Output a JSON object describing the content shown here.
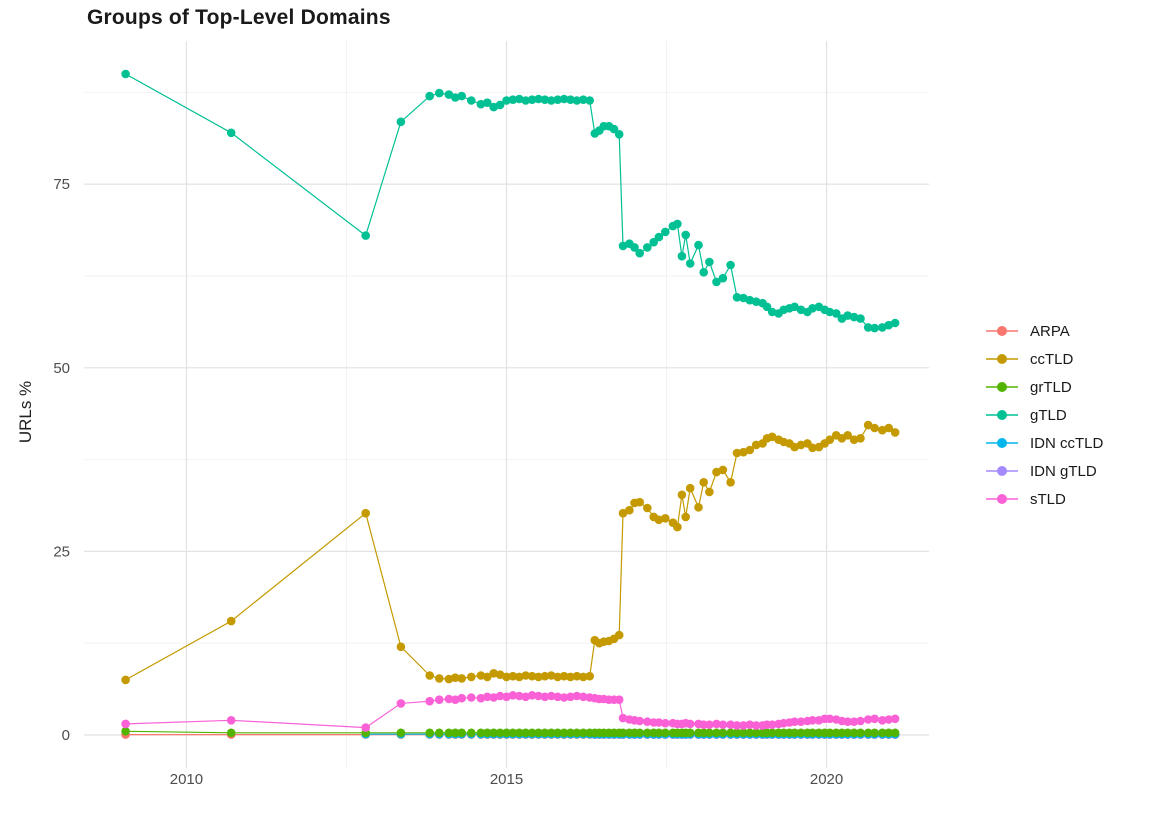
{
  "chart_data": {
    "type": "line",
    "title": "Groups of Top-Level Domains",
    "xlabel": "",
    "ylabel": "URLs %",
    "grid": true,
    "legend_position": "right",
    "xlim": [
      2008.4,
      2021.6
    ],
    "ylim": [
      -4.5,
      94.5
    ],
    "x_ticks": [
      2010,
      2015,
      2020
    ],
    "x_minor_ticks": [
      2012.5,
      2017.5
    ],
    "y_ticks": [
      0,
      25,
      50,
      75
    ],
    "y_minor_ticks": [
      12.5,
      37.5,
      62.5,
      87.5
    ],
    "colors": {
      "background": "#FFFFFF",
      "grid_major": "#E4E4E4",
      "grid_minor": "#F2F2F2",
      "tick_label": "#4D4D4D",
      "title": "#1A1A1A"
    },
    "draw_order": [
      "ARPA",
      "IDN gTLD",
      "IDN ccTLD",
      "grTLD",
      "sTLD",
      "ccTLD",
      "gTLD"
    ],
    "x": [
      2009.05,
      2010.7,
      2012.8,
      2013.35,
      2013.8,
      2013.95,
      2014.1,
      2014.2,
      2014.3,
      2014.45,
      2014.6,
      2014.7,
      2014.8,
      2014.9,
      2015.0,
      2015.1,
      2015.2,
      2015.3,
      2015.4,
      2015.5,
      2015.6,
      2015.7,
      2015.8,
      2015.9,
      2016.0,
      2016.1,
      2016.2,
      2016.3,
      2016.38,
      2016.45,
      2016.52,
      2016.6,
      2016.68,
      2016.76,
      2016.82,
      2016.92,
      2017.0,
      2017.08,
      2017.2,
      2017.3,
      2017.38,
      2017.48,
      2017.6,
      2017.67,
      2017.74,
      2017.8,
      2017.87,
      2018.0,
      2018.08,
      2018.17,
      2018.28,
      2018.38,
      2018.5,
      2018.6,
      2018.7,
      2018.8,
      2018.9,
      2019.0,
      2019.07,
      2019.15,
      2019.25,
      2019.33,
      2019.42,
      2019.5,
      2019.6,
      2019.7,
      2019.78,
      2019.88,
      2019.97,
      2020.05,
      2020.15,
      2020.24,
      2020.33,
      2020.43,
      2020.53,
      2020.65,
      2020.75,
      2020.87,
      2020.97,
      2021.07
    ],
    "series": [
      {
        "name": "ARPA",
        "key": "arpa",
        "color": "#F8766D",
        "values": [
          0.05,
          0.05,
          0.05,
          0.05,
          0.05,
          0.05,
          0.05,
          0.05,
          0.05,
          0.05,
          0.05,
          0.05,
          0.05,
          0.05,
          0.05,
          0.05,
          0.05,
          0.05,
          0.05,
          0.05,
          0.05,
          0.05,
          0.05,
          0.05,
          0.05,
          0.05,
          0.05,
          0.05,
          0.05,
          0.05,
          0.05,
          0.05,
          0.05,
          0.05,
          0.05,
          0.05,
          0.05,
          0.05,
          0.05,
          0.05,
          0.05,
          0.05,
          0.05,
          0.05,
          0.05,
          0.05,
          0.05,
          0.05,
          0.05,
          0.05,
          0.05,
          0.05,
          0.05,
          0.05,
          0.05,
          0.05,
          0.05,
          0.05,
          0.05,
          0.05,
          0.05,
          0.05,
          0.05,
          0.05,
          0.05,
          0.05,
          0.05,
          0.05,
          0.05,
          0.05,
          0.05,
          0.05,
          0.05,
          0.05,
          0.05,
          0.05,
          0.05,
          0.05,
          0.05,
          0.05
        ]
      },
      {
        "name": "ccTLD",
        "key": "cctld",
        "color": "#C49A00",
        "values": [
          7.5,
          15.5,
          30.2,
          12,
          8.1,
          7.7,
          7.6,
          7.8,
          7.7,
          7.9,
          8.1,
          7.9,
          8.4,
          8.2,
          7.9,
          8,
          7.9,
          8.1,
          8,
          7.9,
          8,
          8.1,
          7.9,
          8,
          7.9,
          8,
          7.9,
          8,
          12.9,
          12.5,
          12.7,
          12.8,
          13.1,
          13.6,
          30.2,
          30.6,
          31.6,
          31.7,
          30.9,
          29.7,
          29.3,
          29.5,
          28.9,
          28.3,
          32.7,
          29.7,
          33.6,
          31,
          34.4,
          33.1,
          35.8,
          36.1,
          34.4,
          38.4,
          38.5,
          38.8,
          39.5,
          39.7,
          40.4,
          40.6,
          40.2,
          39.9,
          39.7,
          39.2,
          39.5,
          39.7,
          39.1,
          39.2,
          39.7,
          40.2,
          40.8,
          40.4,
          40.8,
          40.2,
          40.4,
          42.2,
          41.8,
          41.5,
          41.8,
          41.2
        ]
      },
      {
        "name": "grTLD",
        "key": "grtld",
        "color": "#53B400",
        "values": [
          0.5,
          0.3,
          0.3,
          0.3,
          0.3,
          0.3,
          0.3,
          0.3,
          0.3,
          0.3,
          0.3,
          0.3,
          0.3,
          0.3,
          0.3,
          0.3,
          0.3,
          0.3,
          0.3,
          0.3,
          0.3,
          0.3,
          0.3,
          0.3,
          0.3,
          0.3,
          0.3,
          0.3,
          0.3,
          0.3,
          0.3,
          0.3,
          0.3,
          0.3,
          0.3,
          0.3,
          0.3,
          0.3,
          0.3,
          0.3,
          0.3,
          0.3,
          0.3,
          0.3,
          0.3,
          0.3,
          0.3,
          0.3,
          0.3,
          0.3,
          0.3,
          0.3,
          0.3,
          0.3,
          0.3,
          0.3,
          0.3,
          0.3,
          0.3,
          0.3,
          0.3,
          0.3,
          0.3,
          0.3,
          0.3,
          0.3,
          0.3,
          0.3,
          0.3,
          0.3,
          0.3,
          0.3,
          0.3,
          0.3,
          0.3,
          0.3,
          0.3,
          0.3,
          0.3,
          0.3
        ]
      },
      {
        "name": "gTLD",
        "key": "gtld",
        "color": "#00C094",
        "values": [
          90,
          82,
          68,
          83.5,
          87,
          87.4,
          87.2,
          86.8,
          87,
          86.4,
          85.9,
          86.1,
          85.5,
          85.8,
          86.4,
          86.5,
          86.6,
          86.4,
          86.5,
          86.6,
          86.5,
          86.4,
          86.5,
          86.6,
          86.5,
          86.4,
          86.5,
          86.4,
          81.9,
          82.3,
          82.9,
          82.9,
          82.5,
          81.8,
          66.6,
          66.9,
          66.4,
          65.6,
          66.4,
          67.1,
          67.8,
          68.5,
          69.3,
          69.6,
          65.2,
          68.1,
          64.2,
          66.7,
          63,
          64.4,
          61.7,
          62.2,
          64,
          59.6,
          59.5,
          59.2,
          59,
          58.8,
          58.3,
          57.6,
          57.4,
          57.9,
          58.1,
          58.3,
          57.9,
          57.6,
          58.1,
          58.3,
          57.9,
          57.6,
          57.4,
          56.7,
          57.1,
          56.9,
          56.7,
          55.5,
          55.4,
          55.5,
          55.8,
          56.1
        ]
      },
      {
        "name": "IDN ccTLD",
        "key": "idn-cctld",
        "color": "#00B6EB",
        "values": [
          null,
          null,
          0.1,
          0.1,
          0.1,
          0.1,
          0.1,
          0.1,
          0.1,
          0.1,
          0.1,
          0.1,
          0.1,
          0.1,
          0.1,
          0.1,
          0.1,
          0.1,
          0.1,
          0.1,
          0.1,
          0.1,
          0.1,
          0.1,
          0.1,
          0.1,
          0.1,
          0.1,
          0.1,
          0.1,
          0.1,
          0.1,
          0.1,
          0.1,
          0.1,
          0.1,
          0.1,
          0.1,
          0.1,
          0.1,
          0.1,
          0.1,
          0.1,
          0.1,
          0.1,
          0.1,
          0.1,
          0.1,
          0.1,
          0.1,
          0.1,
          0.1,
          0.1,
          0.1,
          0.1,
          0.1,
          0.1,
          0.1,
          0.1,
          0.1,
          0.1,
          0.1,
          0.1,
          0.1,
          0.1,
          0.1,
          0.1,
          0.1,
          0.1,
          0.1,
          0.1,
          0.1,
          0.1,
          0.1,
          0.1,
          0.1,
          0.1,
          0.1,
          0.1,
          0.1
        ]
      },
      {
        "name": "IDN gTLD",
        "key": "idn-gtld",
        "color": "#A58AFF",
        "values": [
          null,
          null,
          null,
          null,
          null,
          null,
          null,
          null,
          null,
          null,
          null,
          null,
          null,
          null,
          null,
          null,
          null,
          null,
          null,
          null,
          null,
          null,
          null,
          null,
          null,
          null,
          null,
          null,
          0.05,
          0.05,
          0.05,
          0.05,
          0.05,
          0.05,
          0.05,
          0.05,
          0.05,
          0.05,
          0.05,
          0.05,
          0.05,
          0.05,
          0.05,
          0.05,
          0.05,
          0.05,
          0.05,
          0.05,
          0.05,
          0.05,
          0.05,
          0.05,
          0.05,
          0.05,
          0.05,
          0.05,
          0.05,
          0.05,
          0.05,
          0.05,
          0.05,
          0.05,
          0.05,
          0.05,
          0.05,
          0.05,
          0.05,
          0.05,
          0.05,
          0.05,
          0.05,
          0.05,
          0.05,
          0.05,
          0.05,
          0.05,
          0.05,
          0.05,
          0.05,
          0.05
        ]
      },
      {
        "name": "sTLD",
        "key": "stld",
        "color": "#FB61D7",
        "values": [
          1.5,
          2,
          1,
          4.3,
          4.6,
          4.8,
          4.9,
          4.8,
          5,
          5.1,
          5,
          5.2,
          5.1,
          5.3,
          5.2,
          5.4,
          5.3,
          5.2,
          5.4,
          5.3,
          5.2,
          5.3,
          5.2,
          5.1,
          5.2,
          5.3,
          5.2,
          5.1,
          5,
          4.9,
          4.9,
          4.8,
          4.8,
          4.8,
          2.3,
          2.1,
          2,
          1.9,
          1.8,
          1.7,
          1.7,
          1.6,
          1.6,
          1.5,
          1.5,
          1.6,
          1.5,
          1.5,
          1.4,
          1.4,
          1.5,
          1.4,
          1.4,
          1.3,
          1.3,
          1.4,
          1.3,
          1.3,
          1.4,
          1.4,
          1.5,
          1.6,
          1.7,
          1.8,
          1.8,
          1.9,
          2,
          2,
          2.2,
          2.2,
          2.1,
          1.9,
          1.8,
          1.8,
          1.9,
          2.1,
          2.2,
          2,
          2.1,
          2.2
        ]
      }
    ]
  }
}
